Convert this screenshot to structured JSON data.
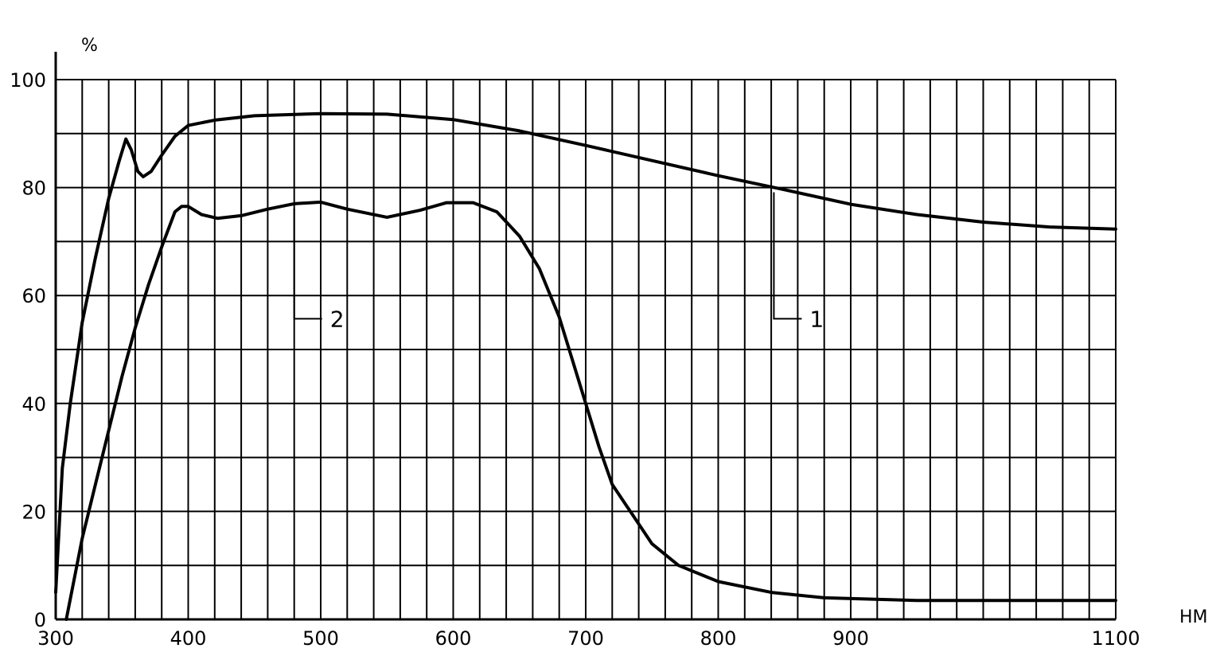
{
  "chart_data": {
    "type": "line",
    "title": "",
    "xlabel": "HM",
    "ylabel": "%",
    "xlim": [
      300,
      1100
    ],
    "ylim": [
      0,
      100
    ],
    "grid": true,
    "x_tick_labels": [
      "300",
      "400",
      "500",
      "600",
      "700",
      "800",
      "900",
      "1100"
    ],
    "x_tick_values": [
      300,
      400,
      500,
      600,
      700,
      800,
      900,
      1100
    ],
    "y_tick_labels": [
      "0",
      "20",
      "40",
      "60",
      "80",
      "100"
    ],
    "y_tick_values": [
      0,
      20,
      40,
      60,
      80,
      100
    ],
    "series": [
      {
        "name": "1",
        "points": [
          [
            300,
            5
          ],
          [
            305,
            28
          ],
          [
            311,
            40
          ],
          [
            320,
            55
          ],
          [
            330,
            67
          ],
          [
            340,
            78
          ],
          [
            348,
            85
          ],
          [
            353,
            89
          ],
          [
            357,
            87
          ],
          [
            362,
            83
          ],
          [
            366,
            82
          ],
          [
            372,
            83
          ],
          [
            380,
            86
          ],
          [
            390,
            89.5
          ],
          [
            400,
            91.5
          ],
          [
            420,
            92.5
          ],
          [
            450,
            93.3
          ],
          [
            500,
            93.7
          ],
          [
            550,
            93.6
          ],
          [
            600,
            92.6
          ],
          [
            650,
            90.5
          ],
          [
            700,
            87.8
          ],
          [
            750,
            85
          ],
          [
            800,
            82.2
          ],
          [
            850,
            79.6
          ],
          [
            900,
            76.9
          ],
          [
            950,
            75
          ],
          [
            1000,
            73.6
          ],
          [
            1050,
            72.7
          ],
          [
            1100,
            72.3
          ]
        ]
      },
      {
        "name": "2",
        "points": [
          [
            308,
            0
          ],
          [
            320,
            15
          ],
          [
            330,
            25
          ],
          [
            340,
            35
          ],
          [
            350,
            45
          ],
          [
            360,
            54
          ],
          [
            370,
            62
          ],
          [
            380,
            69
          ],
          [
            390,
            75.5
          ],
          [
            395,
            76.5
          ],
          [
            400,
            76.5
          ],
          [
            410,
            75
          ],
          [
            422,
            74.3
          ],
          [
            440,
            74.8
          ],
          [
            460,
            76
          ],
          [
            480,
            77
          ],
          [
            500,
            77.3
          ],
          [
            520,
            76
          ],
          [
            550,
            74.5
          ],
          [
            575,
            75.8
          ],
          [
            595,
            77.2
          ],
          [
            615,
            77.2
          ],
          [
            633,
            75.5
          ],
          [
            650,
            71
          ],
          [
            665,
            65
          ],
          [
            680,
            56
          ],
          [
            690,
            48
          ],
          [
            700,
            40
          ],
          [
            710,
            32
          ],
          [
            720,
            25
          ],
          [
            735,
            19.5
          ],
          [
            750,
            14
          ],
          [
            770,
            10
          ],
          [
            800,
            7
          ],
          [
            840,
            5
          ],
          [
            880,
            4
          ],
          [
            950,
            3.5
          ],
          [
            1100,
            3.5
          ]
        ]
      }
    ],
    "annotations": [
      {
        "label": "1",
        "series": "1",
        "x": 842
      },
      {
        "label": "2",
        "series": "2",
        "x": 480
      }
    ]
  }
}
